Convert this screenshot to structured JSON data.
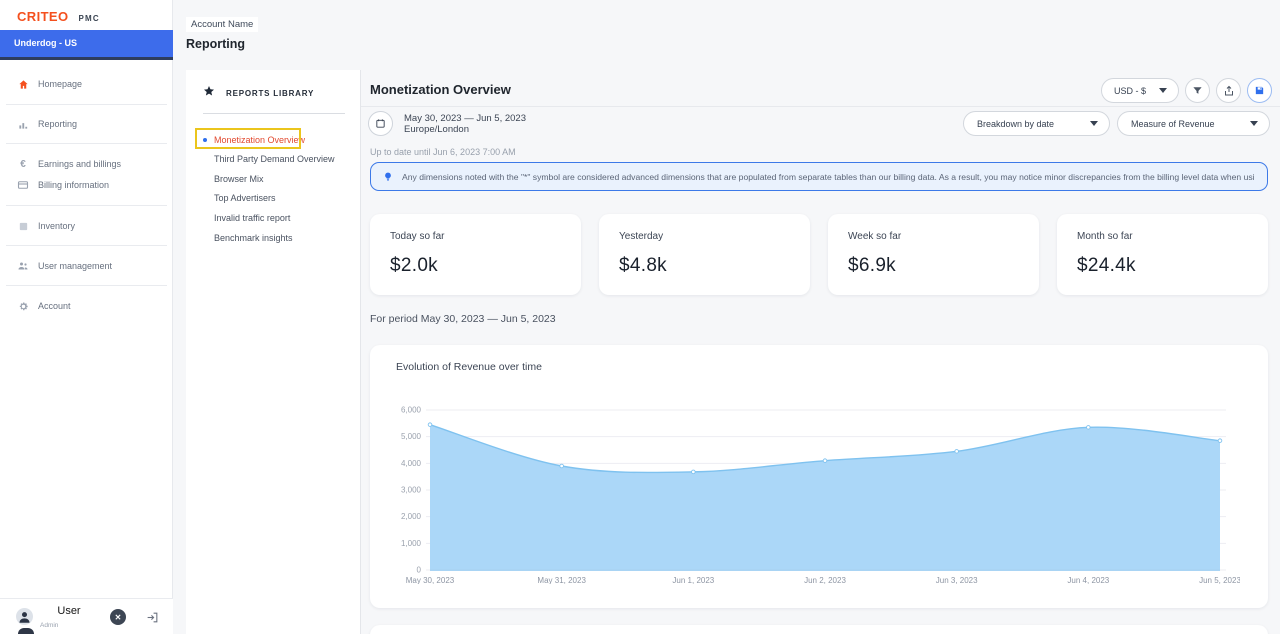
{
  "brand": {
    "logo": "CRITEO",
    "product": "PMC"
  },
  "account_switcher": {
    "label": "Underdog - US"
  },
  "sidebar": {
    "items": [
      {
        "label": "Homepage",
        "icon": "home-icon"
      },
      {
        "label": "Reporting",
        "icon": "bar-chart-icon"
      },
      {
        "label": "Earnings and billings",
        "icon": "euro-icon"
      },
      {
        "label": "Billing information",
        "icon": "credit-card-icon"
      },
      {
        "label": "Inventory",
        "icon": "inventory-icon"
      },
      {
        "label": "User management",
        "icon": "users-icon"
      },
      {
        "label": "Account",
        "icon": "gear-icon"
      }
    ],
    "user": {
      "name": "User",
      "role": "Admin",
      "close_glyph": "✕"
    }
  },
  "header": {
    "account_label": "Account Name",
    "page_title": "Reporting"
  },
  "reports_library": {
    "title": "REPORTS LIBRARY",
    "items": [
      "Monetization Overview",
      "Third Party Demand Overview",
      "Browser Mix",
      "Top Advertisers",
      "Invalid traffic report",
      "Benchmark insights"
    ],
    "selected": "Monetization Overview"
  },
  "toolbar": {
    "currency": "USD - $"
  },
  "report": {
    "title": "Monetization Overview",
    "date_range": "May 30, 2023 — Jun 5, 2023",
    "timezone": "Europe/London",
    "freshness": "Up to date until Jun 6, 2023 7:00 AM",
    "breakdown_selected": "Breakdown by date",
    "measure_selected": "Measure of Revenue",
    "banner_text": "Any dimensions noted with the \"*\" symbol are considered advanced dimensions that are populated from separate tables than our billing data. As a result, you may notice minor discrepancies from the billing level data when using these dimensions.",
    "kpis": [
      {
        "label": "Today so far",
        "value": "$2.0k"
      },
      {
        "label": "Yesterday",
        "value": "$4.8k"
      },
      {
        "label": "Week so far",
        "value": "$6.9k"
      },
      {
        "label": "Month so far",
        "value": "$24.4k"
      }
    ],
    "period_label": "For period May 30, 2023 — Jun 5, 2023"
  },
  "chart_data": {
    "type": "area",
    "title": "Evolution of Revenue over time",
    "categories": [
      "May 30, 2023",
      "May 31, 2023",
      "Jun 1, 2023",
      "Jun 2, 2023",
      "Jun 3, 2023",
      "Jun 4, 2023",
      "Jun 5, 2023"
    ],
    "values": [
      5450,
      3900,
      3680,
      4100,
      4450,
      5350,
      4850
    ],
    "xlabel": "",
    "ylabel": "",
    "ylim": [
      0,
      6000
    ],
    "yticks": [
      0,
      1000,
      2000,
      3000,
      4000,
      5000,
      6000
    ],
    "grid": true,
    "legend": false,
    "fill_color": "#abd7f8",
    "line_color": "#7fc2ef"
  },
  "colors": {
    "brand_orange": "#f4501e",
    "accent_blue": "#2f6fed",
    "account_bar_blue": "#3d6ceb",
    "highlight_yellow": "#ebc51c",
    "selected_report_red": "#e2492f",
    "banner_bg": "#eaf2fd",
    "banner_border": "#3c79e8"
  }
}
